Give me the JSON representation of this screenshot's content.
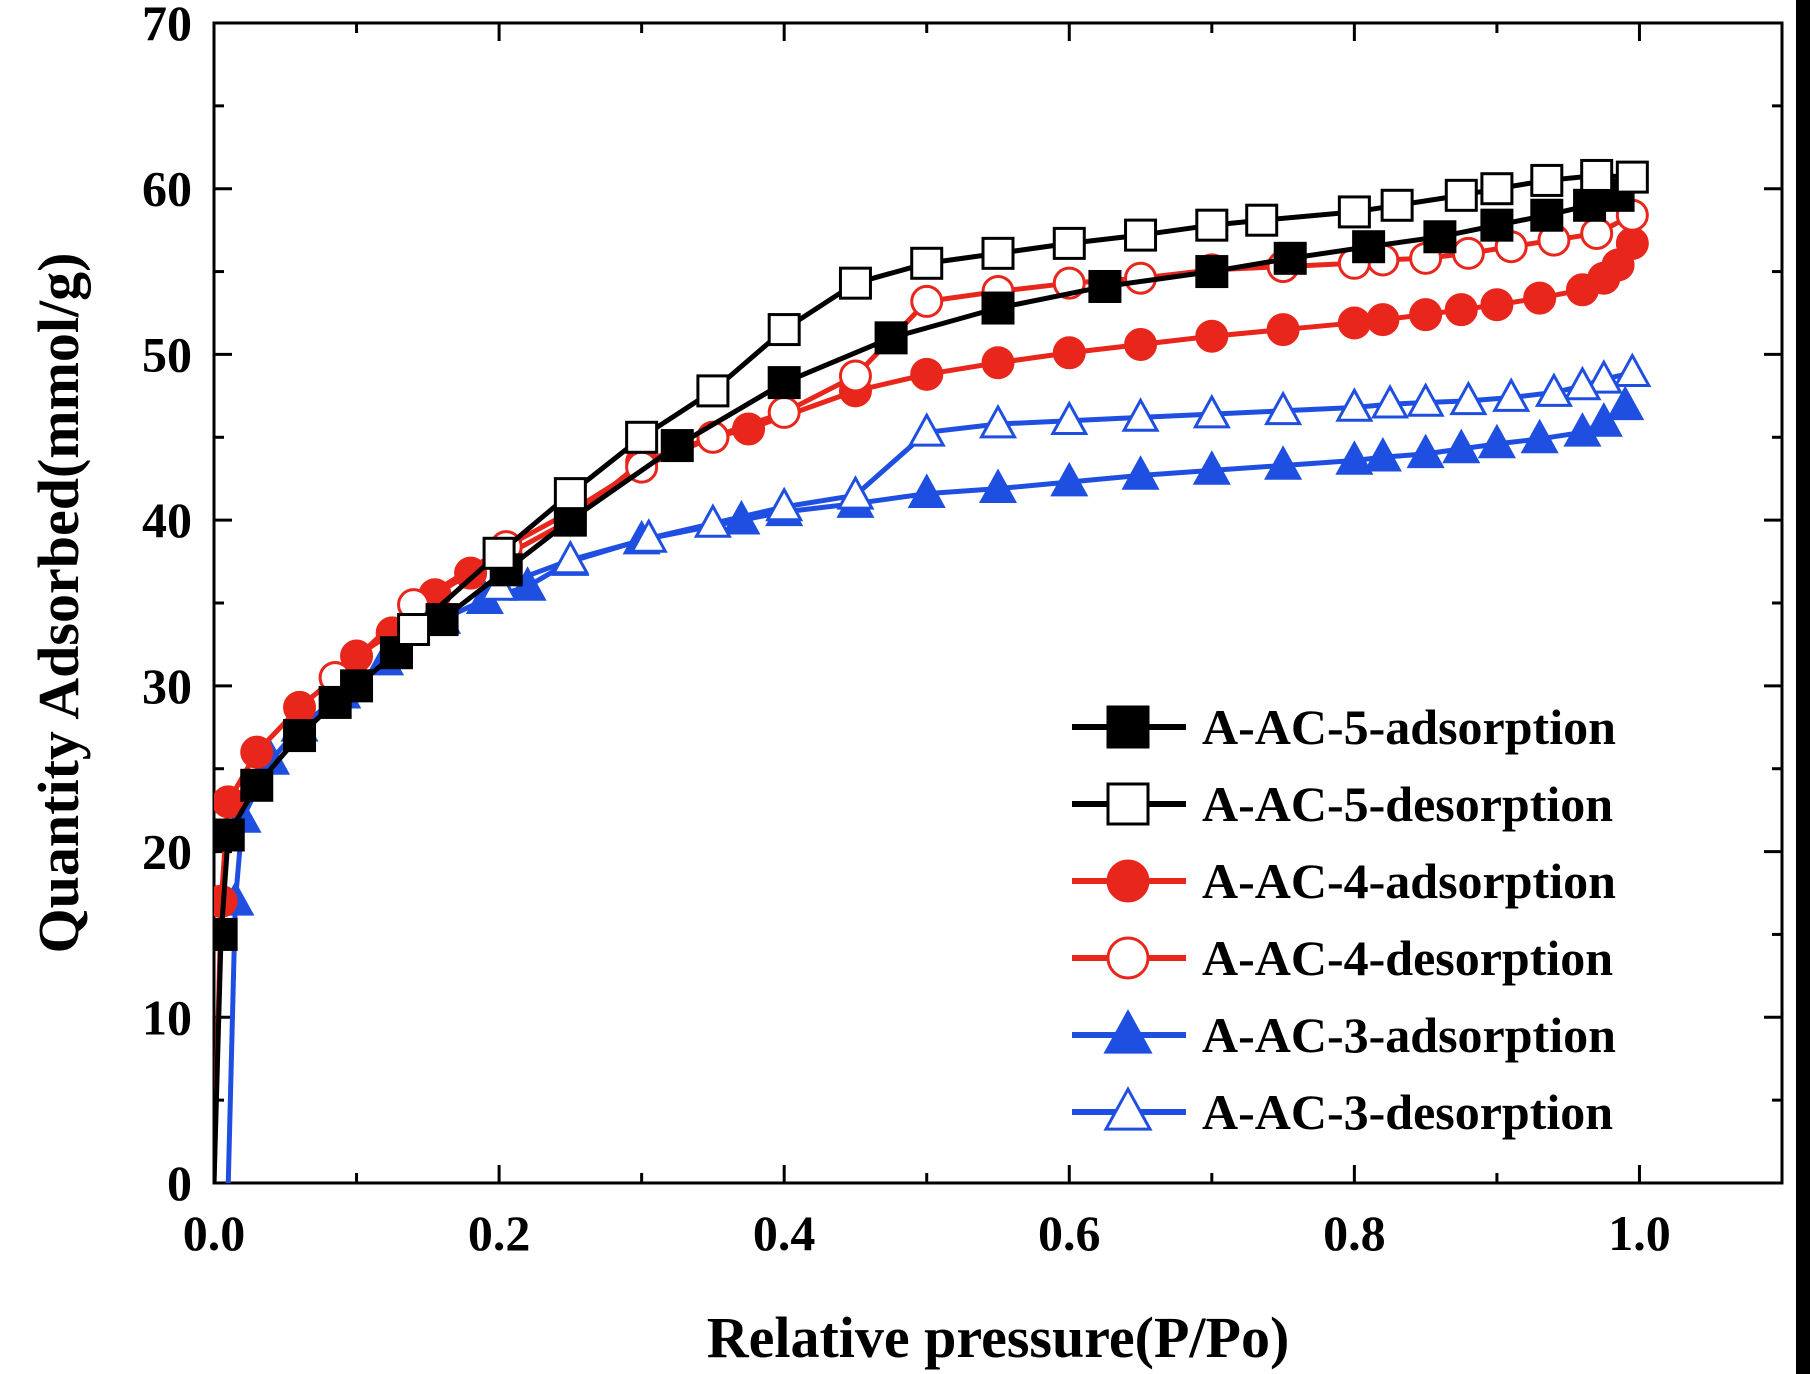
{
  "chart_data": {
    "type": "line",
    "xlabel": "Relative pressure(P/Po)",
    "ylabel": "Quantity Adsorbed(mmol/g)",
    "xlim": [
      0,
      1.1
    ],
    "ylim": [
      0,
      70
    ],
    "x_ticks": [
      "0.0",
      "0.2",
      "0.4",
      "0.6",
      "0.8",
      "1.0"
    ],
    "x_tick_values": [
      0,
      0.2,
      0.4,
      0.6,
      0.8,
      1.0
    ],
    "y_ticks": [
      "0",
      "10",
      "20",
      "30",
      "40",
      "50",
      "60",
      "70"
    ],
    "y_tick_values": [
      0,
      10,
      20,
      30,
      40,
      50,
      60,
      70
    ],
    "grid": false,
    "legend_position": "bottom-right",
    "series": [
      {
        "name": "A-AC-5-adsorption",
        "color": "#000000",
        "marker": "square",
        "filled": true,
        "x": [
          0.0,
          0.005,
          0.01,
          0.03,
          0.06,
          0.085,
          0.1,
          0.128,
          0.16,
          0.205,
          0.25,
          0.325,
          0.4,
          0.475,
          0.55,
          0.625,
          0.7,
          0.755,
          0.81,
          0.86,
          0.9,
          0.935,
          0.965,
          0.985
        ],
        "y": [
          0,
          15,
          21,
          24,
          27,
          29,
          30,
          32,
          34,
          37,
          40,
          44.5,
          48.3,
          51,
          52.8,
          54.1,
          55,
          55.8,
          56.5,
          57.1,
          57.8,
          58.4,
          59,
          59.6
        ]
      },
      {
        "name": "A-AC-5-desorption",
        "color": "#000000",
        "marker": "square",
        "filled": false,
        "x": [
          0.995,
          0.97,
          0.935,
          0.9,
          0.875,
          0.83,
          0.8,
          0.735,
          0.7,
          0.65,
          0.6,
          0.55,
          0.5,
          0.45,
          0.4,
          0.35,
          0.3,
          0.25,
          0.2,
          0.14
        ],
        "y": [
          60.7,
          60.8,
          60.5,
          60,
          59.6,
          59,
          58.6,
          58.1,
          57.8,
          57.2,
          56.7,
          56.1,
          55.5,
          54.3,
          51.5,
          47.8,
          45,
          41.6,
          38,
          33.4
        ]
      },
      {
        "name": "A-AC-4-adsorption",
        "color": "#e8261c",
        "marker": "circle",
        "filled": true,
        "x": [
          0.0,
          0.005,
          0.01,
          0.03,
          0.06,
          0.085,
          0.1,
          0.125,
          0.155,
          0.18,
          0.205,
          0.25,
          0.3,
          0.35,
          0.375,
          0.45,
          0.5,
          0.55,
          0.6,
          0.65,
          0.7,
          0.75,
          0.8,
          0.82,
          0.85,
          0.875,
          0.9,
          0.93,
          0.96,
          0.975,
          0.985,
          0.995
        ],
        "y": [
          0,
          17,
          23,
          26,
          28.7,
          30.5,
          31.8,
          33.2,
          35.5,
          36.8,
          37.9,
          40,
          43.5,
          45,
          45.5,
          47.8,
          48.8,
          49.5,
          50.1,
          50.6,
          51.1,
          51.5,
          51.9,
          52.1,
          52.4,
          52.7,
          53,
          53.4,
          53.9,
          54.6,
          55.4,
          56.7
        ]
      },
      {
        "name": "A-AC-4-desorption",
        "color": "#e8261c",
        "marker": "circle",
        "filled": false,
        "x": [
          0.995,
          0.97,
          0.94,
          0.91,
          0.88,
          0.85,
          0.82,
          0.8,
          0.75,
          0.7,
          0.65,
          0.6,
          0.55,
          0.5,
          0.45,
          0.4,
          0.35,
          0.3,
          0.25,
          0.205,
          0.14,
          0.085
        ],
        "y": [
          58.4,
          57.3,
          56.9,
          56.5,
          56.1,
          55.8,
          55.7,
          55.5,
          55.3,
          55.1,
          54.6,
          54.3,
          53.8,
          53.2,
          48.7,
          46.5,
          45,
          43.2,
          40.5,
          38.4,
          34.9,
          30.5
        ]
      },
      {
        "name": "A-AC-3-adsorption",
        "color": "#1f4fe0",
        "marker": "triangle",
        "filled": true,
        "x": [
          0.01,
          0.015,
          0.02,
          0.04,
          0.06,
          0.09,
          0.12,
          0.16,
          0.19,
          0.22,
          0.25,
          0.3,
          0.37,
          0.4,
          0.45,
          0.5,
          0.55,
          0.6,
          0.65,
          0.7,
          0.75,
          0.8,
          0.82,
          0.85,
          0.875,
          0.9,
          0.93,
          0.96,
          0.975,
          0.99
        ],
        "y": [
          0,
          17,
          22,
          25.5,
          27.5,
          29.5,
          31.5,
          34,
          35.2,
          36,
          37.5,
          38.8,
          40,
          40.5,
          41,
          41.6,
          41.9,
          42.3,
          42.7,
          43,
          43.3,
          43.6,
          43.8,
          44,
          44.3,
          44.6,
          44.9,
          45.3,
          45.9,
          46.9
        ]
      },
      {
        "name": "A-AC-3-desorption",
        "color": "#1f4fe0",
        "marker": "triangle",
        "filled": false,
        "x": [
          0.995,
          0.975,
          0.96,
          0.94,
          0.91,
          0.88,
          0.85,
          0.825,
          0.8,
          0.75,
          0.7,
          0.65,
          0.6,
          0.55,
          0.5,
          0.45,
          0.4,
          0.35,
          0.305,
          0.25,
          0.2
        ],
        "y": [
          48.9,
          48.5,
          48.1,
          47.7,
          47.4,
          47.2,
          47.1,
          47,
          46.8,
          46.6,
          46.4,
          46.2,
          46,
          45.8,
          45.3,
          41.5,
          40.8,
          39.8,
          38.9,
          37.6,
          36
        ]
      }
    ]
  }
}
